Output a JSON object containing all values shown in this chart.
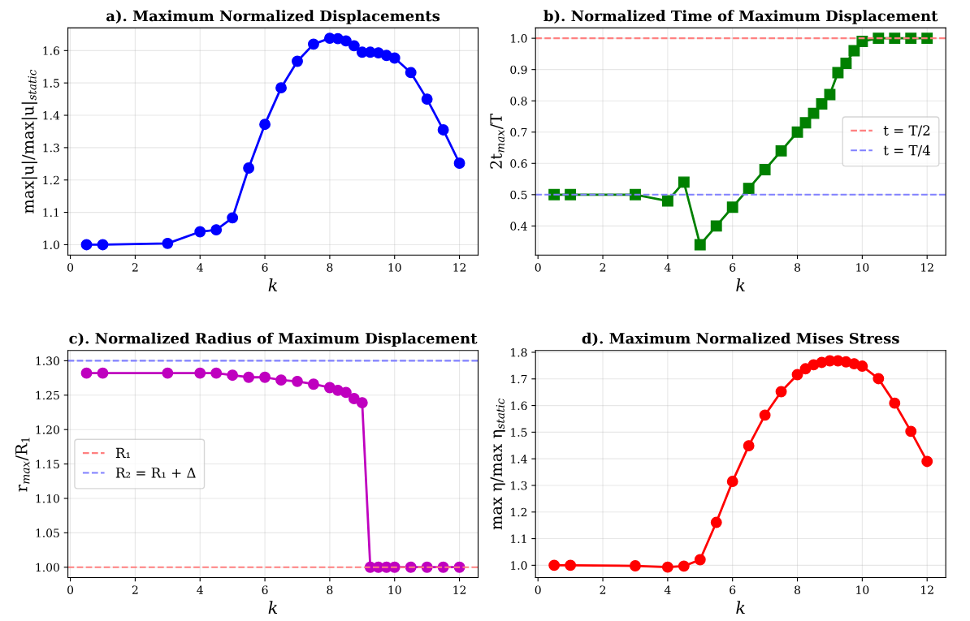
{
  "chart_data": [
    {
      "type": "line",
      "title": "a). Maximum Normalized Displacements",
      "xlabel": "k",
      "ylabel": "max|u|/max|u|$_{static}$",
      "x": [
        0.5,
        1,
        3,
        4,
        4.5,
        5,
        5.5,
        6,
        6.5,
        7,
        7.5,
        8,
        8.25,
        8.5,
        8.75,
        9,
        9.25,
        9.5,
        9.75,
        10,
        10.5,
        11,
        11.5,
        12
      ],
      "series": [
        {
          "color": "#0000ff",
          "values": [
            1.0,
            1.0,
            1.004,
            1.04,
            1.046,
            1.083,
            1.237,
            1.372,
            1.485,
            1.567,
            1.62,
            1.638,
            1.637,
            1.63,
            1.615,
            1.595,
            1.595,
            1.593,
            1.585,
            1.577,
            1.532,
            1.45,
            1.355,
            1.252
          ]
        }
      ],
      "marker": "circle",
      "xlim": [
        -0.075,
        12.575
      ],
      "ylim": [
        0.968,
        1.67
      ],
      "xticks": [
        0,
        2,
        4,
        6,
        8,
        10,
        12
      ],
      "yticks": [
        {
          "value": 1.0,
          "label": "1.0"
        },
        1.1,
        1.2,
        1.3,
        1.4,
        1.5,
        1.6
      ],
      "grid": true,
      "legend": false
    },
    {
      "type": "line",
      "title": "b). Normalized Time of Maximum Displacement",
      "xlabel": "k",
      "ylabel": "2t$_{max}$/T",
      "x": [
        0.5,
        1,
        3,
        4,
        4.5,
        5,
        5.5,
        6,
        6.5,
        7,
        7.5,
        8,
        8.25,
        8.5,
        8.75,
        9,
        9.25,
        9.5,
        9.75,
        10,
        10.5,
        11,
        11.5,
        12
      ],
      "series": [
        {
          "color": "#008000",
          "values": [
            0.5,
            0.5,
            0.5,
            0.48,
            0.54,
            0.34,
            0.4,
            0.46,
            0.52,
            0.58,
            0.64,
            0.7,
            0.73,
            0.76,
            0.79,
            0.82,
            0.89,
            0.92,
            0.96,
            0.99,
            1.0,
            1.0,
            1.0,
            1.0
          ]
        }
      ],
      "marker": "square",
      "xlim": [
        -0.075,
        12.575
      ],
      "ylim": [
        0.307,
        1.033
      ],
      "xticks": [
        0,
        2,
        4,
        6,
        8,
        10,
        12
      ],
      "yticks": [
        0.4,
        0.5,
        0.6,
        0.7,
        0.8,
        0.9,
        {
          "value": 1.0,
          "label": "1.0"
        }
      ],
      "grid": true,
      "ref_lines": [
        {
          "axis": "y",
          "value": 1.0,
          "label": "t = T/2",
          "color": "#ff8080",
          "line_style": "dashed"
        },
        {
          "axis": "y",
          "value": 0.5,
          "label": "t = T/4",
          "color": "#8080ff",
          "line_style": "dashed"
        }
      ],
      "legend": "center right"
    },
    {
      "type": "line",
      "title": "c). Normalized Radius of Maximum Displacement",
      "xlabel": "k",
      "ylabel": "r$_{max}$/R$_{1}$",
      "x": [
        0.5,
        1,
        3,
        4,
        4.5,
        5,
        5.5,
        6,
        6.5,
        7,
        7.5,
        8,
        8.25,
        8.5,
        8.75,
        9,
        9.25,
        9.5,
        9.75,
        10,
        10.5,
        11,
        11.5,
        12
      ],
      "series": [
        {
          "color": "#bf00bf",
          "values": [
            1.282,
            1.282,
            1.282,
            1.282,
            1.282,
            1.279,
            1.276,
            1.276,
            1.272,
            1.27,
            1.266,
            1.261,
            1.257,
            1.254,
            1.245,
            1.239,
            1.0,
            1.0,
            1.0,
            1.0,
            1.0,
            1.0,
            1.0,
            1.0
          ]
        }
      ],
      "marker": "circle",
      "xlim": [
        -0.075,
        12.575
      ],
      "ylim": [
        0.985,
        1.315
      ],
      "xticks": [
        0,
        2,
        4,
        6,
        8,
        10,
        12
      ],
      "yticks": [
        {
          "value": 1.0,
          "label": "1.00"
        },
        1.05,
        {
          "value": 1.1,
          "label": "1.10"
        },
        1.15,
        {
          "value": 1.2,
          "label": "1.20"
        },
        1.25,
        {
          "value": 1.3,
          "label": "1.30"
        }
      ],
      "grid": true,
      "ref_lines": [
        {
          "axis": "y",
          "value": 1.0,
          "label": "R₁",
          "color": "#ff8080",
          "line_style": "dashed"
        },
        {
          "axis": "y",
          "value": 1.3,
          "label": "R₂ = R₁ + Δ",
          "color": "#8080ff",
          "line_style": "dashed"
        }
      ],
      "legend": "center left"
    },
    {
      "type": "line",
      "title": "d). Maximum Normalized Mises Stress",
      "xlabel": "k",
      "ylabel": "max η/max η$_{static}$",
      "x": [
        0.5,
        1,
        3,
        4,
        4.5,
        5,
        5.5,
        6,
        6.5,
        7,
        7.5,
        8,
        8.25,
        8.5,
        8.75,
        9,
        9.25,
        9.5,
        9.75,
        10,
        10.5,
        11,
        11.5,
        12
      ],
      "series": [
        {
          "color": "#ff0000",
          "values": [
            1.0,
            1.0,
            0.998,
            0.993,
            0.997,
            1.021,
            1.161,
            1.315,
            1.449,
            1.564,
            1.652,
            1.716,
            1.738,
            1.753,
            1.762,
            1.768,
            1.768,
            1.764,
            1.757,
            1.748,
            1.701,
            1.609,
            1.503,
            1.39
          ]
        }
      ],
      "marker": "circle",
      "xlim": [
        -0.075,
        12.575
      ],
      "ylim": [
        0.954,
        1.807
      ],
      "xticks": [
        0,
        2,
        4,
        6,
        8,
        10,
        12
      ],
      "yticks": [
        {
          "value": 1.0,
          "label": "1.0"
        },
        1.1,
        1.2,
        1.3,
        1.4,
        1.5,
        1.6,
        1.7,
        1.8
      ],
      "grid": true,
      "legend": false
    }
  ]
}
